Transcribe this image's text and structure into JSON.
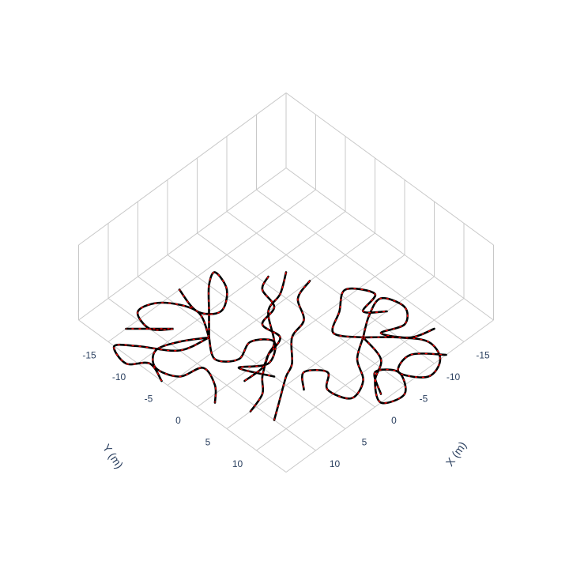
{
  "chart_data": {
    "type": "line3d",
    "xlabel": "X (m)",
    "ylabel": "Y (m)",
    "xlim": [
      -20,
      15
    ],
    "ylim": [
      -20,
      15
    ],
    "xticks": [
      -15,
      -10,
      -5,
      0,
      5,
      10
    ],
    "yticks": [
      -15,
      -10,
      -5,
      0,
      5,
      10
    ],
    "grid": true,
    "color": "#000000",
    "dash_color": "#ff0000",
    "series": [
      {
        "x": [
          6,
          3,
          0,
          -2,
          -1,
          2,
          4,
          3
        ],
        "y": [
          -7,
          -10,
          -13,
          -14,
          -11,
          -9,
          -11,
          -15
        ]
      },
      {
        "x": [
          6,
          9,
          12,
          14,
          13,
          10,
          11,
          13
        ],
        "y": [
          -7,
          -9,
          -10,
          -8,
          -5,
          -4,
          -1,
          1
        ]
      },
      {
        "x": [
          6,
          4,
          6,
          9,
          10,
          8,
          10,
          12
        ],
        "y": [
          -7,
          -11,
          -15,
          -16,
          -13,
          -11,
          -13,
          -15
        ]
      },
      {
        "x": [
          6,
          8,
          6,
          3,
          1,
          4,
          7,
          5
        ],
        "y": [
          -7,
          -4,
          -2,
          -3,
          -1,
          1,
          -1,
          3
        ]
      },
      {
        "x": [
          6,
          10,
          13,
          15,
          16,
          14,
          15
        ],
        "y": [
          -7,
          -8,
          -12,
          -14,
          -11,
          -9,
          -6
        ]
      },
      {
        "x": [
          -7,
          -10,
          -13,
          -14,
          -12,
          -9,
          -11,
          -14
        ],
        "y": [
          6,
          4,
          3,
          6,
          8,
          7,
          10,
          11
        ]
      },
      {
        "x": [
          -7,
          -4,
          -2,
          1,
          2,
          0,
          2,
          4
        ],
        "y": [
          6,
          8,
          11,
          12,
          9,
          7,
          5,
          7
        ]
      },
      {
        "x": [
          -7,
          -6,
          -3,
          -1,
          -4,
          -6,
          -4,
          -2
        ],
        "y": [
          6,
          10,
          12,
          15,
          16,
          13,
          11,
          14
        ]
      },
      {
        "x": [
          -7,
          -10,
          -12,
          -11,
          -8,
          -6,
          -9,
          -12
        ],
        "y": [
          6,
          9,
          12,
          15,
          16,
          13,
          12,
          15
        ]
      },
      {
        "x": [
          -7,
          -5,
          -8,
          -11,
          -13,
          -10,
          -12
        ],
        "y": [
          6,
          3,
          1,
          -1,
          2,
          3,
          5
        ]
      },
      {
        "x": [
          -8,
          -5,
          -2,
          1,
          3,
          6,
          8,
          11
        ],
        "y": [
          -8,
          -6,
          -5,
          -1,
          0,
          2,
          4,
          5
        ]
      },
      {
        "x": [
          -9,
          -6,
          -4,
          -1,
          2,
          4,
          7,
          10
        ],
        "y": [
          -5,
          -4,
          -1,
          0,
          3,
          4,
          6,
          8
        ]
      },
      {
        "x": [
          -6,
          -4,
          -3,
          0,
          0,
          3,
          5,
          8
        ],
        "y": [
          -9,
          -8,
          -5,
          -4,
          -1,
          0,
          1,
          1
        ]
      }
    ]
  }
}
